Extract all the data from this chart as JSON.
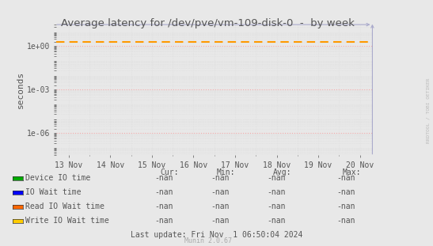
{
  "title": "Average latency for /dev/pve/vm-109-disk-0  -  by week",
  "ylabel": "seconds",
  "background_color": "#e8e8e8",
  "plot_bg_color": "#e8e8e8",
  "grid_major_color": "#f5aaaa",
  "grid_minor_color": "#dddddd",
  "y_min": 3e-08,
  "y_max": 30.0,
  "y_ticks": [
    1e-06,
    0.001,
    1.0
  ],
  "y_tick_labels": [
    "1e-06",
    "1e-03",
    "1e+00"
  ],
  "dashed_line_y": 2.0,
  "dashed_line_color": "#ff9900",
  "arrow_color": "#aaaacc",
  "x_tick_labels": [
    "13 Nov",
    "14 Nov",
    "15 Nov",
    "16 Nov",
    "17 Nov",
    "18 Nov",
    "19 Nov",
    "20 Nov"
  ],
  "legend_entries": [
    {
      "label": "Device IO time",
      "color": "#00aa00"
    },
    {
      "label": "IO Wait time",
      "color": "#0000ff"
    },
    {
      "label": "Read IO Wait time",
      "color": "#ff6600"
    },
    {
      "label": "Write IO Wait time",
      "color": "#ffcc00"
    }
  ],
  "col_headers": [
    "Cur:",
    "Min:",
    "Avg:",
    "Max:"
  ],
  "nan_value": "-nan",
  "footer_text": "Last update: Fri Nov  1 06:50:04 2024",
  "watermark": "Munin 2.0.67",
  "rrdtool_text": "RRDTOOL / TOBI OETIKER"
}
